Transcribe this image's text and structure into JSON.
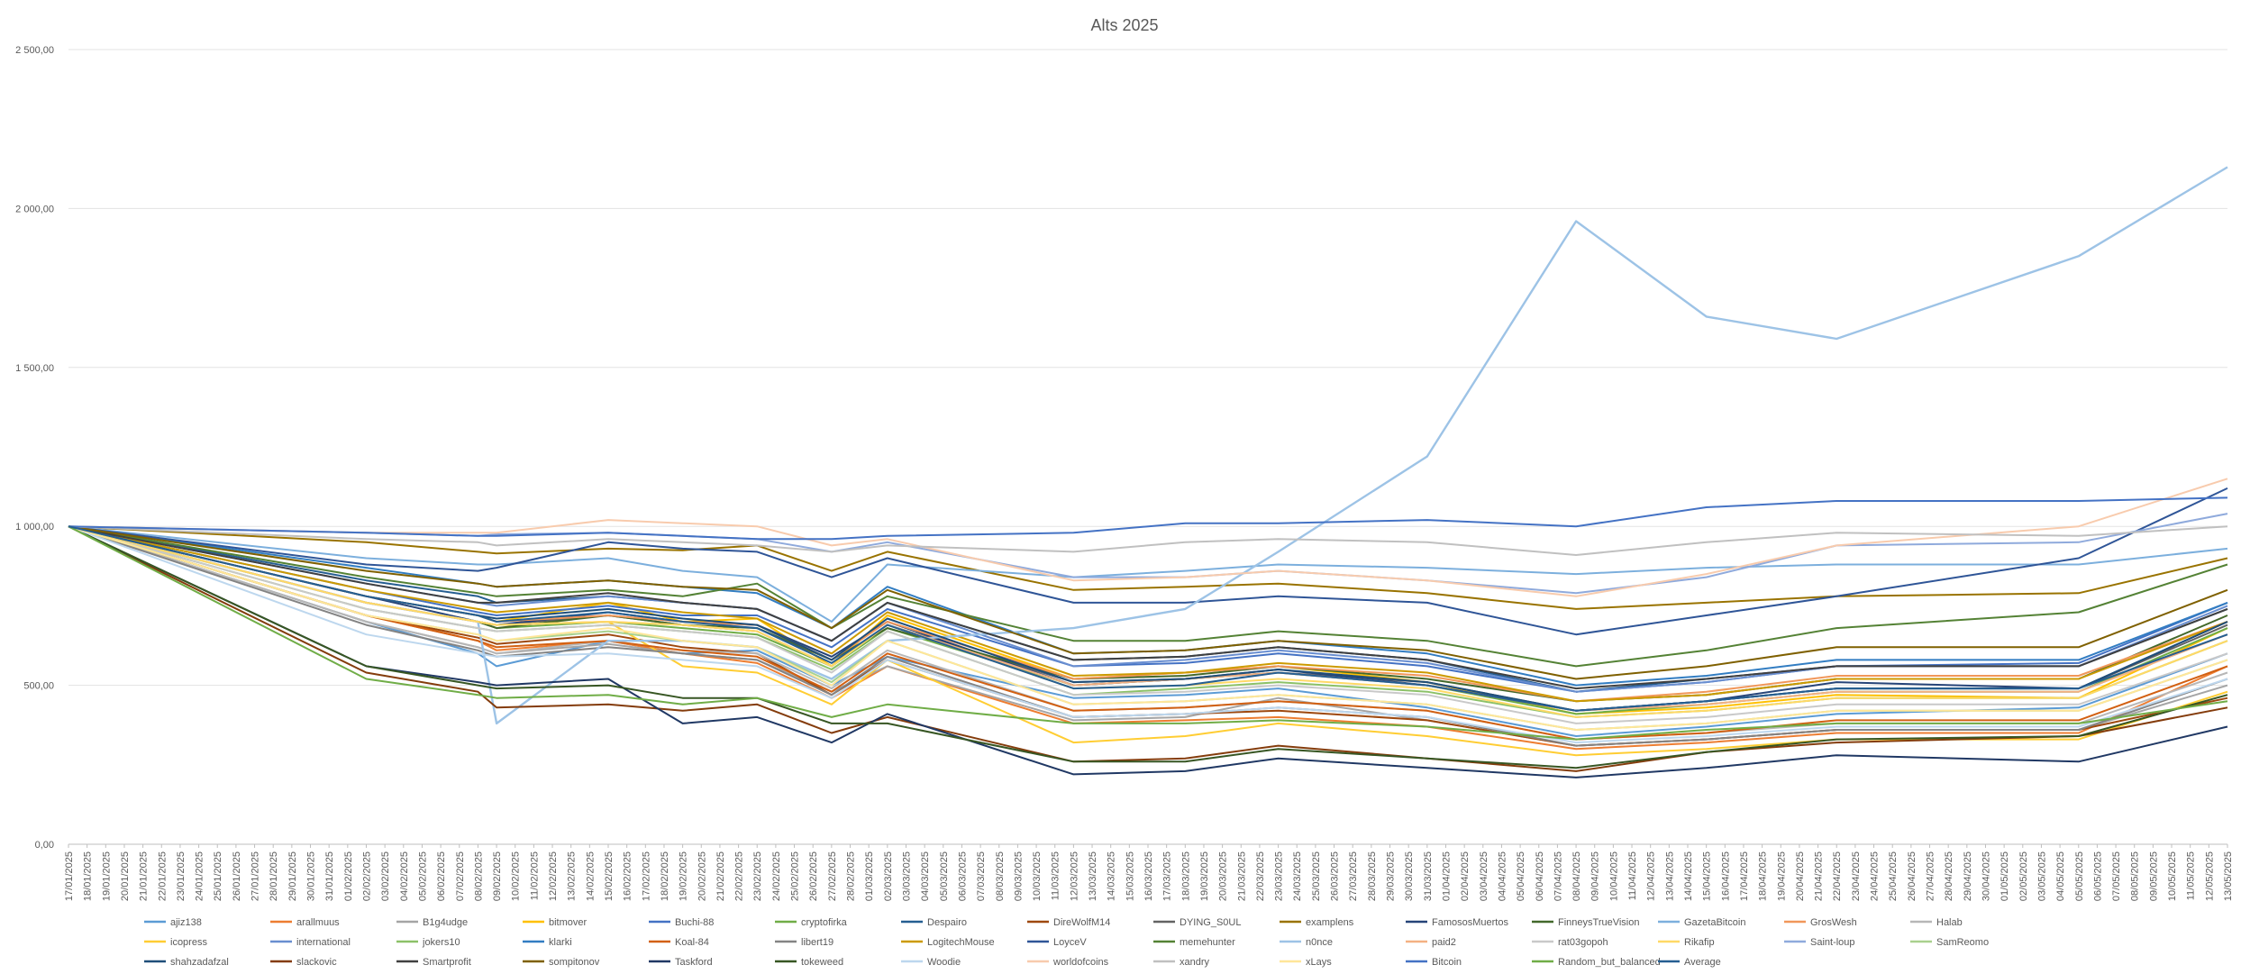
{
  "chart_data": {
    "type": "line",
    "title": "Alts 2025",
    "xlabel": "",
    "ylabel": "",
    "ylim": [
      0,
      2500
    ],
    "yticks": [
      "0,00",
      "500,00",
      "1 000,00",
      "1 500,00",
      "2 000,00",
      "2 500,00"
    ],
    "grid": true,
    "legend_position": "bottom",
    "x": [
      "17/01/2025",
      "18/01/2025",
      "19/01/2025",
      "20/01/2025",
      "21/01/2025",
      "22/01/2025",
      "23/01/2025",
      "24/01/2025",
      "25/01/2025",
      "26/01/2025",
      "27/01/2025",
      "28/01/2025",
      "29/01/2025",
      "30/01/2025",
      "31/01/2025",
      "01/02/2025",
      "02/02/2025",
      "03/02/2025",
      "04/02/2025",
      "05/02/2025",
      "06/02/2025",
      "07/02/2025",
      "08/02/2025",
      "09/02/2025",
      "10/02/2025",
      "11/02/2025",
      "12/02/2025",
      "13/02/2025",
      "14/02/2025",
      "15/02/2025",
      "16/02/2025",
      "17/02/2025",
      "18/02/2025",
      "19/02/2025",
      "20/02/2025",
      "21/02/2025",
      "22/02/2025",
      "23/02/2025",
      "24/02/2025",
      "25/02/2025",
      "26/02/2025",
      "27/02/2025",
      "28/02/2025",
      "01/03/2025",
      "02/03/2025",
      "03/03/2025",
      "04/03/2025",
      "05/03/2025",
      "06/03/2025",
      "07/03/2025",
      "08/03/2025",
      "09/03/2025",
      "10/03/2025",
      "11/03/2025",
      "12/03/2025",
      "13/03/2025",
      "14/03/2025",
      "15/03/2025",
      "16/03/2025",
      "17/03/2025",
      "18/03/2025",
      "19/03/2025",
      "20/03/2025",
      "21/03/2025",
      "22/03/2025",
      "23/03/2025",
      "24/03/2025",
      "25/03/2025",
      "26/03/2025",
      "27/03/2025",
      "28/03/2025",
      "29/03/2025",
      "30/03/2025",
      "31/03/2025",
      "01/04/2025",
      "02/04/2025",
      "03/04/2025",
      "04/04/2025",
      "05/04/2025",
      "06/04/2025",
      "07/04/2025",
      "08/04/2025",
      "09/04/2025",
      "10/04/2025",
      "11/04/2025",
      "12/04/2025",
      "13/04/2025",
      "14/04/2025",
      "15/04/2025",
      "16/04/2025",
      "17/04/2025",
      "18/04/2025",
      "19/04/2025",
      "20/04/2025",
      "21/04/2025",
      "22/04/2025",
      "23/04/2025",
      "24/04/2025",
      "25/04/2025",
      "26/04/2025",
      "27/04/2025",
      "28/04/2025",
      "29/04/2025",
      "30/04/2025",
      "01/05/2025",
      "02/05/2025",
      "03/05/2025",
      "04/05/2025",
      "05/05/2025",
      "06/05/2025",
      "07/05/2025",
      "08/05/2025",
      "09/05/2025",
      "10/05/2025",
      "11/05/2025",
      "12/05/2025",
      "13/05/2025"
    ],
    "keyframe_dates": [
      "17/01/2025",
      "02/02/2025",
      "08/02/2025",
      "09/02/2025",
      "15/02/2025",
      "19/02/2025",
      "23/02/2025",
      "27/02/2025",
      "02/03/2025",
      "12/03/2025",
      "18/03/2025",
      "23/03/2025",
      "31/03/2025",
      "08/04/2025",
      "15/04/2025",
      "22/04/2025",
      "05/05/2025",
      "13/05/2025"
    ],
    "series": [
      {
        "name": "ajiz138",
        "color": "#5B9BD5",
        "keyframes": [
          1000,
          700,
          600,
          560,
          640,
          600,
          610,
          500,
          590,
          460,
          470,
          490,
          430,
          340,
          370,
          410,
          430,
          600
        ]
      },
      {
        "name": "arallmuus",
        "color": "#ED7D31",
        "keyframes": [
          1000,
          720,
          640,
          610,
          640,
          600,
          570,
          460,
          560,
          380,
          390,
          400,
          370,
          300,
          320,
          350,
          350,
          560
        ]
      },
      {
        "name": "B1g4udge",
        "color": "#A5A5A5",
        "keyframes": [
          1000,
          700,
          620,
          600,
          630,
          600,
          580,
          480,
          560,
          390,
          400,
          460,
          390,
          310,
          330,
          360,
          360,
          500
        ]
      },
      {
        "name": "bitmover",
        "color": "#FFC000",
        "keyframes": [
          1000,
          780,
          720,
          700,
          760,
          700,
          710,
          560,
          720,
          520,
          540,
          560,
          510,
          410,
          430,
          470,
          460,
          680
        ]
      },
      {
        "name": "Buchi-88",
        "color": "#4472C4",
        "keyframes": [
          1000,
          800,
          730,
          720,
          750,
          720,
          720,
          620,
          740,
          560,
          570,
          600,
          560,
          480,
          510,
          560,
          570,
          760
        ]
      },
      {
        "name": "cryptofirka",
        "color": "#70AD47",
        "keyframes": [
          1000,
          760,
          700,
          680,
          700,
          680,
          660,
          560,
          680,
          500,
          520,
          540,
          500,
          410,
          440,
          480,
          480,
          680
        ]
      },
      {
        "name": "Despairo",
        "color": "#255E91",
        "keyframes": [
          1000,
          830,
          780,
          760,
          780,
          760,
          740,
          640,
          760,
          580,
          590,
          620,
          580,
          480,
          520,
          560,
          560,
          740
        ]
      },
      {
        "name": "DireWolfM14",
        "color": "#9E480E",
        "keyframes": [
          1000,
          720,
          650,
          630,
          660,
          620,
          600,
          470,
          580,
          400,
          410,
          420,
          390,
          310,
          330,
          360,
          360,
          460
        ]
      },
      {
        "name": "DYING_S0UL",
        "color": "#636363",
        "keyframes": [
          1000,
          760,
          700,
          690,
          720,
          690,
          670,
          560,
          690,
          510,
          520,
          540,
          510,
          420,
          450,
          490,
          490,
          690
        ]
      },
      {
        "name": "examplens",
        "color": "#997300",
        "keyframes": [
          1000,
          950,
          920,
          915,
          930,
          925,
          940,
          860,
          920,
          800,
          810,
          820,
          790,
          740,
          760,
          780,
          790,
          900
        ]
      },
      {
        "name": "FamososMuertos",
        "color": "#264478",
        "keyframes": [
          1000,
          780,
          700,
          690,
          730,
          700,
          690,
          590,
          700,
          500,
          520,
          550,
          500,
          420,
          450,
          510,
          490,
          700
        ]
      },
      {
        "name": "FinneysTrueVision",
        "color": "#43682B",
        "keyframes": [
          1000,
          760,
          700,
          680,
          720,
          690,
          680,
          580,
          680,
          520,
          530,
          560,
          520,
          450,
          470,
          520,
          520,
          720
        ]
      },
      {
        "name": "GazetaBitcoin",
        "color": "#7CAFDD",
        "keyframes": [
          1000,
          900,
          880,
          880,
          900,
          860,
          840,
          700,
          880,
          840,
          860,
          880,
          870,
          850,
          870,
          880,
          880,
          930
        ]
      },
      {
        "name": "GrosWesh",
        "color": "#F1975A",
        "keyframes": [
          1000,
          780,
          720,
          700,
          720,
          700,
          690,
          580,
          700,
          520,
          540,
          560,
          530,
          450,
          480,
          530,
          530,
          700
        ]
      },
      {
        "name": "Halab",
        "color": "#B7B7B7",
        "keyframes": [
          1000,
          700,
          620,
          600,
          640,
          610,
          600,
          490,
          610,
          420,
          430,
          450,
          420,
          330,
          350,
          380,
          380,
          540
        ]
      },
      {
        "name": "icopress",
        "color": "#FFCD33",
        "keyframes": [
          1000,
          760,
          700,
          690,
          700,
          560,
          540,
          440,
          580,
          320,
          340,
          380,
          340,
          280,
          300,
          330,
          330,
          480
        ]
      },
      {
        "name": "international",
        "color": "#698ED0",
        "keyframes": [
          1000,
          820,
          760,
          750,
          780,
          760,
          740,
          640,
          760,
          560,
          580,
          610,
          570,
          480,
          510,
          560,
          560,
          750
        ]
      },
      {
        "name": "jokers10",
        "color": "#8CC168",
        "keyframes": [
          1000,
          740,
          680,
          670,
          690,
          670,
          650,
          550,
          670,
          470,
          490,
          510,
          480,
          400,
          420,
          460,
          460,
          640
        ]
      },
      {
        "name": "klarki",
        "color": "#327DC2",
        "keyframes": [
          1000,
          870,
          820,
          810,
          830,
          810,
          790,
          680,
          810,
          600,
          610,
          640,
          600,
          500,
          530,
          580,
          580,
          760
        ]
      },
      {
        "name": "Koal-84",
        "color": "#D26012",
        "keyframes": [
          1000,
          720,
          640,
          620,
          640,
          610,
          590,
          480,
          600,
          420,
          430,
          450,
          420,
          330,
          350,
          390,
          390,
          560
        ]
      },
      {
        "name": "libert19",
        "color": "#848484",
        "keyframes": [
          1000,
          690,
          610,
          590,
          620,
          600,
          580,
          470,
          590,
          400,
          410,
          430,
          400,
          310,
          330,
          360,
          360,
          520
        ]
      },
      {
        "name": "LogitechMouse",
        "color": "#CC9A00",
        "keyframes": [
          1000,
          800,
          740,
          730,
          760,
          730,
          710,
          600,
          730,
          530,
          540,
          570,
          540,
          450,
          470,
          520,
          520,
          700
        ]
      },
      {
        "name": "LoyceV",
        "color": "#2F5597",
        "keyframes": [
          1000,
          880,
          860,
          870,
          950,
          930,
          920,
          840,
          900,
          760,
          760,
          780,
          760,
          660,
          720,
          780,
          900,
          1120
        ]
      },
      {
        "name": "memehunter",
        "color": "#548235",
        "keyframes": [
          1000,
          840,
          790,
          780,
          800,
          780,
          820,
          680,
          780,
          640,
          640,
          670,
          640,
          560,
          610,
          680,
          730,
          880
        ]
      },
      {
        "name": "n0nce",
        "color": "#9DC3E6",
        "keyframes": [
          1000,
          760,
          700,
          380,
          640,
          640,
          620,
          520,
          640,
          680,
          740,
          920,
          1220,
          1960,
          1660,
          1590,
          1850,
          2130
        ]
      },
      {
        "name": "paid2",
        "color": "#F4B183",
        "keyframes": [
          1000,
          760,
          700,
          690,
          700,
          690,
          670,
          560,
          690,
          500,
          520,
          540,
          500,
          420,
          440,
          480,
          480,
          660
        ]
      },
      {
        "name": "rat03gopoh",
        "color": "#C9C9C9",
        "keyframes": [
          1000,
          740,
          680,
          670,
          690,
          670,
          650,
          540,
          670,
          470,
          480,
          500,
          470,
          380,
          400,
          440,
          440,
          600
        ]
      },
      {
        "name": "Rikafip",
        "color": "#FFD966",
        "keyframes": [
          1000,
          760,
          700,
          690,
          700,
          690,
          670,
          560,
          690,
          490,
          500,
          520,
          490,
          400,
          420,
          460,
          460,
          640
        ]
      },
      {
        "name": "Saint-loup",
        "color": "#8FAADC",
        "keyframes": [
          1000,
          980,
          970,
          975,
          980,
          970,
          960,
          920,
          950,
          840,
          840,
          860,
          830,
          790,
          840,
          940,
          950,
          1040
        ]
      },
      {
        "name": "SamReomo",
        "color": "#A9D18E",
        "keyframes": [
          1000,
          720,
          660,
          640,
          670,
          640,
          620,
          510,
          640,
          440,
          450,
          470,
          440,
          360,
          380,
          420,
          420,
          580
        ]
      },
      {
        "name": "shahzadafzal",
        "color": "#1F4E79",
        "keyframes": [
          1000,
          780,
          720,
          710,
          740,
          710,
          690,
          580,
          710,
          510,
          520,
          550,
          510,
          420,
          450,
          490,
          490,
          700
        ]
      },
      {
        "name": "slackovic",
        "color": "#843C0C",
        "keyframes": [
          1000,
          540,
          480,
          430,
          440,
          420,
          440,
          350,
          400,
          260,
          270,
          310,
          270,
          230,
          290,
          320,
          340,
          430
        ]
      },
      {
        "name": "Smartprofit",
        "color": "#404040",
        "keyframes": [
          1000,
          820,
          760,
          760,
          790,
          760,
          740,
          640,
          760,
          580,
          590,
          620,
          580,
          490,
          520,
          560,
          560,
          740
        ]
      },
      {
        "name": "sompitonov",
        "color": "#7F6000",
        "keyframes": [
          1000,
          860,
          820,
          810,
          830,
          810,
          800,
          680,
          800,
          600,
          610,
          640,
          610,
          520,
          560,
          620,
          620,
          800
        ]
      },
      {
        "name": "Taskford",
        "color": "#203864",
        "keyframes": [
          1000,
          560,
          510,
          500,
          520,
          380,
          400,
          320,
          410,
          220,
          230,
          270,
          240,
          210,
          240,
          280,
          260,
          370
        ]
      },
      {
        "name": "tokeweed",
        "color": "#375623",
        "keyframes": [
          1000,
          560,
          500,
          490,
          500,
          460,
          460,
          380,
          380,
          260,
          260,
          300,
          270,
          240,
          290,
          330,
          340,
          470
        ]
      },
      {
        "name": "Woodie",
        "color": "#BDD7EE",
        "keyframes": [
          1000,
          660,
          600,
          590,
          600,
          580,
          560,
          460,
          580,
          400,
          410,
          430,
          400,
          320,
          340,
          370,
          370,
          520
        ]
      },
      {
        "name": "worldofcoins",
        "color": "#F8CBAD",
        "keyframes": [
          1000,
          980,
          980,
          980,
          1020,
          1010,
          1000,
          940,
          960,
          830,
          840,
          860,
          830,
          780,
          850,
          940,
          1000,
          1150
        ]
      },
      {
        "name": "xandry",
        "color": "#C0C0C0",
        "keyframes": [
          1000,
          960,
          950,
          940,
          960,
          950,
          940,
          920,
          940,
          920,
          950,
          960,
          950,
          910,
          950,
          980,
          970,
          1000
        ]
      },
      {
        "name": "xLays",
        "color": "#FFE699",
        "keyframes": [
          1000,
          720,
          660,
          640,
          680,
          640,
          620,
          500,
          640,
          440,
          450,
          470,
          440,
          360,
          380,
          420,
          420,
          580
        ]
      },
      {
        "name": "Bitcoin",
        "color": "#4472C4",
        "keyframes": [
          1000,
          980,
          970,
          970,
          980,
          970,
          960,
          960,
          970,
          980,
          1010,
          1010,
          1020,
          1000,
          1060,
          1080,
          1080,
          1090
        ]
      },
      {
        "name": "Random_but_balanced",
        "color": "#70AD47",
        "keyframes": [
          1000,
          520,
          470,
          460,
          470,
          440,
          460,
          400,
          440,
          380,
          380,
          390,
          370,
          330,
          360,
          380,
          380,
          450
        ]
      },
      {
        "name": "Average",
        "color": "#255E91",
        "keyframes": [
          1000,
          780,
          720,
          700,
          730,
          700,
          680,
          570,
          690,
          490,
          500,
          540,
          500,
          420,
          450,
          490,
          490,
          660
        ]
      }
    ]
  }
}
